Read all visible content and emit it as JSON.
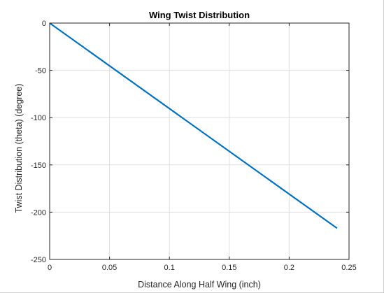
{
  "chart_data": {
    "type": "line",
    "title": "Wing Twist Distribution",
    "xlabel": "Distance Along Half Wing (inch)",
    "ylabel": "Twist Distribution (theta) (degree)",
    "xlim": [
      0,
      0.25
    ],
    "ylim": [
      -250,
      0
    ],
    "x_ticks": [
      0,
      0.05,
      0.1,
      0.15,
      0.2,
      0.25
    ],
    "x_tick_labels": [
      "0",
      "0.05",
      "0.1",
      "0.15",
      "0.2",
      "0.25"
    ],
    "y_ticks": [
      0,
      -50,
      -100,
      -150,
      -200,
      -250
    ],
    "y_tick_labels": [
      "0",
      "-50",
      "-100",
      "-150",
      "-200",
      "-250"
    ],
    "grid": true,
    "series": [
      {
        "color": "#0072bd",
        "x": [
          0,
          0.24
        ],
        "y": [
          0,
          -217
        ]
      }
    ]
  }
}
